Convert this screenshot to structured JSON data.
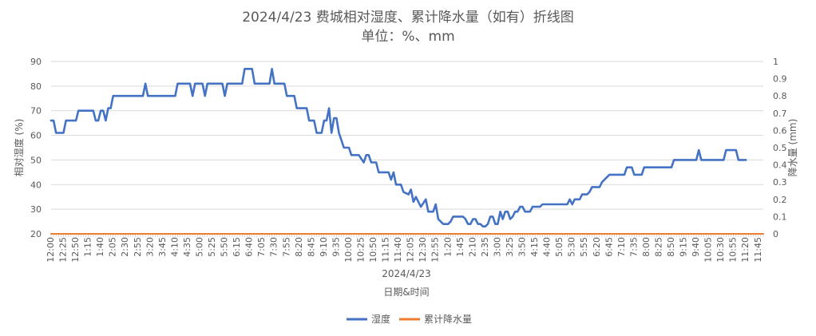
{
  "chart_data": {
    "type": "line",
    "title": "2024/4/23 费城相对湿度、累计降水量（如有）折线图",
    "subtitle": "单位：%、mm",
    "xlabel": "日期&时间",
    "date_label": "2024/4/23",
    "ylabel_left": "相对湿度 (%)",
    "ylabel_right": "降水量 (mm)",
    "ylim_left": [
      20,
      90
    ],
    "yticks_left": [
      "90",
      "80",
      "70",
      "60",
      "50",
      "40",
      "30",
      "20"
    ],
    "ylim_right": [
      0,
      1
    ],
    "yticks_right": [
      "1",
      "0.9",
      "0.8",
      "0.7",
      "0.6",
      "0.5",
      "0.4",
      "0.3",
      "0.2",
      "0.1",
      "0"
    ],
    "x_tick_labels": [
      "12:00",
      "12:25",
      "12:50",
      "1:15",
      "1:40",
      "2:05",
      "2:30",
      "2:55",
      "3:20",
      "3:45",
      "4:10",
      "4:35",
      "5:00",
      "5:25",
      "5:50",
      "6:15",
      "6:40",
      "7:05",
      "7:30",
      "7:55",
      "8:20",
      "8:45",
      "9:10",
      "9:35",
      "10:00",
      "10:25",
      "10:50",
      "11:15",
      "11:40",
      "12:05",
      "12:30",
      "12:55",
      "1:20",
      "1:45",
      "2:10",
      "2:35",
      "3:00",
      "3:25",
      "3:50",
      "4:15",
      "4:40",
      "5:05",
      "5:30",
      "5:55",
      "6:20",
      "6:45",
      "7:10",
      "7:35",
      "8:00",
      "8:25",
      "8:50",
      "9:15",
      "9:40",
      "10:05",
      "10:30",
      "10:55",
      "11:20",
      "11:45"
    ],
    "x_tick_step_minutes": 25,
    "x_span_minutes": 1435,
    "grid": true,
    "legend_position": "bottom",
    "series": [
      {
        "name": "湿度",
        "axis": "left",
        "color": "#4472C4",
        "points": [
          [
            0,
            66
          ],
          [
            5,
            66
          ],
          [
            10,
            61
          ],
          [
            25,
            61
          ],
          [
            30,
            66
          ],
          [
            50,
            66
          ],
          [
            55,
            70
          ],
          [
            85,
            70
          ],
          [
            90,
            66
          ],
          [
            95,
            66
          ],
          [
            100,
            70
          ],
          [
            105,
            70
          ],
          [
            110,
            66
          ],
          [
            115,
            71
          ],
          [
            120,
            71
          ],
          [
            125,
            76
          ],
          [
            185,
            76
          ],
          [
            190,
            81
          ],
          [
            195,
            76
          ],
          [
            250,
            76
          ],
          [
            255,
            81
          ],
          [
            280,
            81
          ],
          [
            285,
            76
          ],
          [
            290,
            81
          ],
          [
            305,
            81
          ],
          [
            310,
            76
          ],
          [
            315,
            81
          ],
          [
            345,
            81
          ],
          [
            350,
            76
          ],
          [
            355,
            81
          ],
          [
            385,
            81
          ],
          [
            390,
            87
          ],
          [
            405,
            87
          ],
          [
            410,
            81
          ],
          [
            440,
            81
          ],
          [
            445,
            87
          ],
          [
            450,
            81
          ],
          [
            470,
            81
          ],
          [
            475,
            76
          ],
          [
            490,
            76
          ],
          [
            495,
            71
          ],
          [
            515,
            71
          ],
          [
            520,
            66
          ],
          [
            530,
            66
          ],
          [
            535,
            61
          ],
          [
            545,
            61
          ],
          [
            550,
            66
          ],
          [
            555,
            66
          ],
          [
            560,
            71
          ],
          [
            565,
            61
          ],
          [
            570,
            67
          ],
          [
            575,
            67
          ],
          [
            580,
            61
          ],
          [
            585,
            58
          ],
          [
            590,
            55
          ],
          [
            600,
            55
          ],
          [
            605,
            52
          ],
          [
            620,
            52
          ],
          [
            630,
            49
          ],
          [
            635,
            52
          ],
          [
            640,
            52
          ],
          [
            645,
            49
          ],
          [
            655,
            49
          ],
          [
            660,
            45
          ],
          [
            680,
            45
          ],
          [
            685,
            42
          ],
          [
            690,
            45
          ],
          [
            695,
            40
          ],
          [
            705,
            40
          ],
          [
            710,
            37
          ],
          [
            720,
            36
          ],
          [
            725,
            38
          ],
          [
            730,
            33
          ],
          [
            735,
            35
          ],
          [
            740,
            33
          ],
          [
            745,
            31
          ],
          [
            755,
            34
          ],
          [
            760,
            29
          ],
          [
            770,
            29
          ],
          [
            775,
            32
          ],
          [
            780,
            26
          ],
          [
            790,
            24
          ],
          [
            800,
            24
          ],
          [
            805,
            25
          ],
          [
            810,
            27
          ],
          [
            830,
            27
          ],
          [
            835,
            26
          ],
          [
            840,
            24
          ],
          [
            845,
            24
          ],
          [
            850,
            26
          ],
          [
            855,
            26
          ],
          [
            860,
            24
          ],
          [
            865,
            24
          ],
          [
            870,
            23
          ],
          [
            875,
            23
          ],
          [
            880,
            24
          ],
          [
            885,
            27
          ],
          [
            890,
            27
          ],
          [
            895,
            24
          ],
          [
            900,
            24
          ],
          [
            905,
            29
          ],
          [
            910,
            26
          ],
          [
            915,
            29
          ],
          [
            920,
            29
          ],
          [
            925,
            26
          ],
          [
            930,
            27
          ],
          [
            935,
            29
          ],
          [
            940,
            29
          ],
          [
            945,
            31
          ],
          [
            950,
            31
          ],
          [
            955,
            29
          ],
          [
            965,
            29
          ],
          [
            970,
            31
          ],
          [
            985,
            31
          ],
          [
            990,
            32
          ],
          [
            1040,
            32
          ],
          [
            1045,
            34
          ],
          [
            1050,
            32
          ],
          [
            1055,
            34
          ],
          [
            1065,
            34
          ],
          [
            1070,
            36
          ],
          [
            1080,
            36
          ],
          [
            1085,
            37
          ],
          [
            1090,
            39
          ],
          [
            1105,
            39
          ],
          [
            1110,
            41
          ],
          [
            1115,
            42
          ],
          [
            1125,
            44
          ],
          [
            1155,
            44
          ],
          [
            1160,
            47
          ],
          [
            1170,
            47
          ],
          [
            1175,
            44
          ],
          [
            1190,
            44
          ],
          [
            1195,
            47
          ],
          [
            1250,
            47
          ],
          [
            1255,
            50
          ],
          [
            1300,
            50
          ],
          [
            1305,
            54
          ],
          [
            1310,
            50
          ],
          [
            1355,
            50
          ],
          [
            1360,
            54
          ],
          [
            1380,
            54
          ],
          [
            1385,
            50
          ],
          [
            1400,
            50
          ]
        ]
      },
      {
        "name": "累计降水量",
        "axis": "right",
        "color": "#ED7D31",
        "points": [
          [
            0,
            0
          ],
          [
            1435,
            0
          ]
        ]
      }
    ]
  }
}
